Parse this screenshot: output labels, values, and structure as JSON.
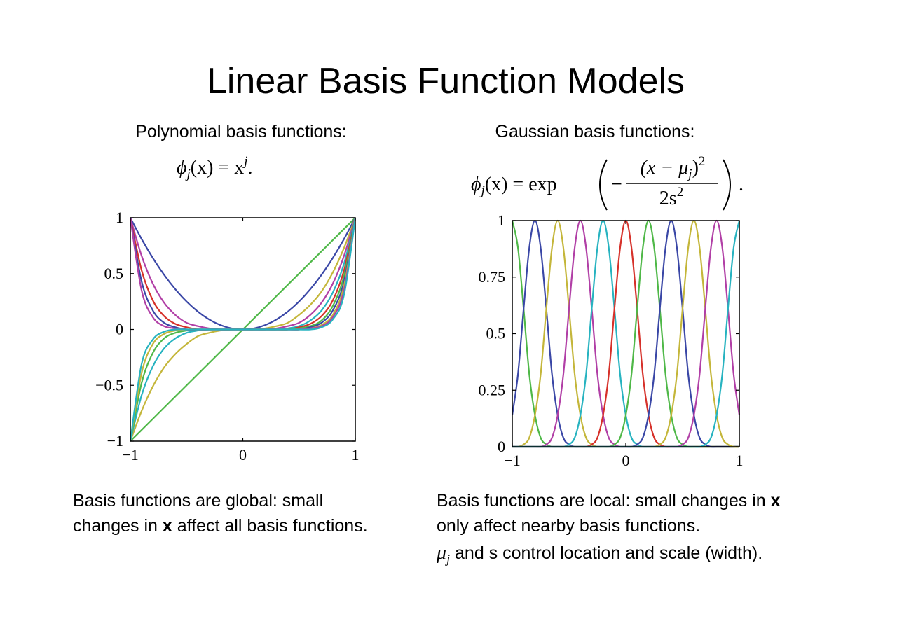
{
  "title": "Linear Basis Function Models",
  "left": {
    "heading": "Polynomial basis functions:",
    "formula": {
      "phi": "ϕ",
      "sub": "j",
      "rest": "(x) = x",
      "sup": "j",
      "end": "."
    },
    "caption": [
      [
        "Basis functions are global: small"
      ],
      [
        "changes in ",
        "x",
        " affect all basis functions."
      ]
    ]
  },
  "right": {
    "heading": "Gaussian basis functions:",
    "formula": {
      "phi": "ϕ",
      "sub": "j",
      "rest": "(x) = exp",
      "minus": "−",
      "num": "(x − μ",
      "num_sub": "j",
      "num_close": ")",
      "num_sup": "2",
      "den": "2s",
      "den_sup": "2",
      "end": "."
    },
    "caption": [
      [
        "Basis functions are local: small changes in ",
        "x"
      ],
      [
        "only affect nearby basis functions."
      ],
      [
        "μ",
        "j",
        " and s control location and scale (width)."
      ]
    ]
  },
  "chart_data": [
    {
      "type": "line",
      "x": [
        -1,
        -0.9,
        -0.8,
        -0.7,
        -0.6,
        -0.5,
        -0.4,
        -0.3,
        -0.2,
        -0.1,
        0,
        0.1,
        0.2,
        0.3,
        0.4,
        0.5,
        0.6,
        0.7,
        0.8,
        0.9,
        1
      ],
      "xlim": [
        -1,
        1
      ],
      "ylim": [
        -1,
        1
      ],
      "xticks": [
        {
          "value": -1,
          "label": "−1"
        },
        0,
        1
      ],
      "yticks": [
        {
          "value": -1,
          "label": "−1"
        },
        {
          "value": -0.5,
          "label": "−0.5"
        },
        0,
        0.5,
        1
      ],
      "series": [
        {
          "color": "#4fb848",
          "values": [
            -1,
            -0.9,
            -0.8,
            -0.7,
            -0.6,
            -0.5,
            -0.4,
            -0.3,
            -0.2,
            -0.1,
            0,
            0.1,
            0.2,
            0.3,
            0.4,
            0.5,
            0.6,
            0.7,
            0.8,
            0.9,
            1
          ]
        },
        {
          "color": "#3a47a6",
          "values": [
            1,
            0.81,
            0.64,
            0.49,
            0.36,
            0.25,
            0.16,
            0.09,
            0.04,
            0.01,
            0,
            0.01,
            0.04,
            0.09,
            0.16,
            0.25,
            0.36,
            0.49,
            0.64,
            0.81,
            1
          ]
        },
        {
          "color": "#c4b63a",
          "values": [
            -1,
            -0.73,
            -0.51,
            -0.34,
            -0.22,
            -0.13,
            -0.06,
            -0.03,
            -0.01,
            0,
            0,
            0,
            0.01,
            0.03,
            0.06,
            0.13,
            0.22,
            0.34,
            0.51,
            0.73,
            1
          ]
        },
        {
          "color": "#b13fa6",
          "values": [
            1,
            0.66,
            0.41,
            0.24,
            0.13,
            0.06,
            0.03,
            0.01,
            0,
            0,
            0,
            0,
            0,
            0.01,
            0.03,
            0.06,
            0.13,
            0.24,
            0.41,
            0.66,
            1
          ]
        },
        {
          "color": "#27b3c0",
          "values": [
            -1,
            -0.59,
            -0.33,
            -0.17,
            -0.08,
            -0.03,
            -0.01,
            0,
            0,
            0,
            0,
            0,
            0,
            0,
            0.01,
            0.03,
            0.08,
            0.17,
            0.33,
            0.59,
            1
          ]
        },
        {
          "color": "#d6312a",
          "values": [
            1,
            0.53,
            0.26,
            0.12,
            0.05,
            0.02,
            0,
            0,
            0,
            0,
            0,
            0,
            0,
            0,
            0,
            0.02,
            0.05,
            0.12,
            0.26,
            0.53,
            1
          ]
        },
        {
          "color": "#4fb848",
          "values": [
            -1,
            -0.48,
            -0.21,
            -0.08,
            -0.03,
            -0.01,
            0,
            0,
            0,
            0,
            0,
            0,
            0,
            0,
            0,
            0.01,
            0.03,
            0.08,
            0.21,
            0.48,
            1
          ]
        },
        {
          "color": "#3a47a6",
          "values": [
            1,
            0.43,
            0.17,
            0.06,
            0.02,
            0,
            0,
            0,
            0,
            0,
            0,
            0,
            0,
            0,
            0,
            0,
            0.02,
            0.06,
            0.17,
            0.43,
            1
          ]
        },
        {
          "color": "#c4b63a",
          "values": [
            -1,
            -0.39,
            -0.13,
            -0.04,
            -0.01,
            0,
            0,
            0,
            0,
            0,
            0,
            0,
            0,
            0,
            0,
            0,
            0.01,
            0.04,
            0.13,
            0.39,
            1
          ]
        },
        {
          "color": "#b13fa6",
          "values": [
            1,
            0.35,
            0.11,
            0.03,
            0.01,
            0,
            0,
            0,
            0,
            0,
            0,
            0,
            0,
            0,
            0,
            0,
            0.01,
            0.03,
            0.11,
            0.35,
            1
          ]
        },
        {
          "color": "#27b3c0",
          "values": [
            -1,
            -0.31,
            -0.09,
            -0.02,
            0,
            0,
            0,
            0,
            0,
            0,
            0,
            0,
            0,
            0,
            0,
            0,
            0,
            0.02,
            0.09,
            0.31,
            1
          ]
        }
      ]
    },
    {
      "type": "line",
      "x": [
        -1,
        -0.95,
        -0.9,
        -0.85,
        -0.8,
        -0.75,
        -0.7,
        -0.65,
        -0.6,
        -0.55,
        -0.5,
        -0.45,
        -0.4,
        -0.35,
        -0.3,
        -0.25,
        -0.2,
        -0.15,
        -0.1,
        -0.05,
        0,
        0.05,
        0.1,
        0.15,
        0.2,
        0.25,
        0.3,
        0.35,
        0.4,
        0.45,
        0.5,
        0.55,
        0.6,
        0.65,
        0.7,
        0.75,
        0.8,
        0.85,
        0.9,
        0.95,
        1
      ],
      "xlim": [
        -1,
        1
      ],
      "ylim": [
        0,
        1
      ],
      "xticks": [
        {
          "value": -1,
          "label": "−1"
        },
        0,
        1
      ],
      "yticks": [
        0,
        0.25,
        0.5,
        0.75,
        1
      ],
      "series": [
        {
          "color": "#4fb848",
          "values": [
            1,
            0.88,
            0.61,
            0.32,
            0.14,
            0.04,
            0.01,
            0,
            0,
            0,
            0,
            0,
            0,
            0,
            0,
            0,
            0,
            0,
            0,
            0,
            0,
            0,
            0,
            0,
            0,
            0,
            0,
            0,
            0,
            0,
            0,
            0,
            0,
            0,
            0,
            0,
            0,
            0,
            0,
            0,
            0
          ]
        },
        {
          "color": "#3a47a6",
          "values": [
            0.14,
            0.32,
            0.61,
            0.88,
            1,
            0.88,
            0.61,
            0.32,
            0.14,
            0.04,
            0.01,
            0,
            0,
            0,
            0,
            0,
            0,
            0,
            0,
            0,
            0,
            0,
            0,
            0,
            0,
            0,
            0,
            0,
            0,
            0,
            0,
            0,
            0,
            0,
            0,
            0,
            0,
            0,
            0,
            0,
            0
          ]
        },
        {
          "color": "#c4b63a",
          "values": [
            0,
            0,
            0.01,
            0.04,
            0.14,
            0.32,
            0.61,
            0.88,
            1,
            0.88,
            0.61,
            0.32,
            0.14,
            0.04,
            0.01,
            0,
            0,
            0,
            0,
            0,
            0,
            0,
            0,
            0,
            0,
            0,
            0,
            0,
            0,
            0,
            0,
            0,
            0,
            0,
            0,
            0,
            0,
            0,
            0,
            0,
            0
          ]
        },
        {
          "color": "#b13fa6",
          "values": [
            0,
            0,
            0,
            0,
            0,
            0,
            0.01,
            0.04,
            0.14,
            0.32,
            0.61,
            0.88,
            1,
            0.88,
            0.61,
            0.32,
            0.14,
            0.04,
            0.01,
            0,
            0,
            0,
            0,
            0,
            0,
            0,
            0,
            0,
            0,
            0,
            0,
            0,
            0,
            0,
            0,
            0,
            0,
            0,
            0,
            0,
            0
          ]
        },
        {
          "color": "#27b3c0",
          "values": [
            0,
            0,
            0,
            0,
            0,
            0,
            0,
            0,
            0,
            0,
            0.01,
            0.04,
            0.14,
            0.32,
            0.61,
            0.88,
            1,
            0.88,
            0.61,
            0.32,
            0.14,
            0.04,
            0.01,
            0,
            0,
            0,
            0,
            0,
            0,
            0,
            0,
            0,
            0,
            0,
            0,
            0,
            0,
            0,
            0,
            0,
            0
          ]
        },
        {
          "color": "#d6312a",
          "values": [
            0,
            0,
            0,
            0,
            0,
            0,
            0,
            0,
            0,
            0,
            0,
            0,
            0,
            0,
            0.01,
            0.04,
            0.14,
            0.32,
            0.61,
            0.88,
            1,
            0.88,
            0.61,
            0.32,
            0.14,
            0.04,
            0.01,
            0,
            0,
            0,
            0,
            0,
            0,
            0,
            0,
            0,
            0,
            0,
            0,
            0,
            0
          ]
        },
        {
          "color": "#4fb848",
          "values": [
            0,
            0,
            0,
            0,
            0,
            0,
            0,
            0,
            0,
            0,
            0,
            0,
            0,
            0,
            0,
            0,
            0,
            0,
            0.01,
            0.04,
            0.14,
            0.32,
            0.61,
            0.88,
            1,
            0.88,
            0.61,
            0.32,
            0.14,
            0.04,
            0.01,
            0,
            0,
            0,
            0,
            0,
            0,
            0,
            0,
            0,
            0
          ]
        },
        {
          "color": "#3a47a6",
          "values": [
            0,
            0,
            0,
            0,
            0,
            0,
            0,
            0,
            0,
            0,
            0,
            0,
            0,
            0,
            0,
            0,
            0,
            0,
            0,
            0,
            0,
            0,
            0.01,
            0.04,
            0.14,
            0.32,
            0.61,
            0.88,
            1,
            0.88,
            0.61,
            0.32,
            0.14,
            0.04,
            0.01,
            0,
            0,
            0,
            0,
            0,
            0
          ]
        },
        {
          "color": "#c4b63a",
          "values": [
            0,
            0,
            0,
            0,
            0,
            0,
            0,
            0,
            0,
            0,
            0,
            0,
            0,
            0,
            0,
            0,
            0,
            0,
            0,
            0,
            0,
            0,
            0,
            0,
            0,
            0,
            0.01,
            0.04,
            0.14,
            0.32,
            0.61,
            0.88,
            1,
            0.88,
            0.61,
            0.32,
            0.14,
            0.04,
            0.01,
            0,
            0
          ]
        },
        {
          "color": "#b13fa6",
          "values": [
            0,
            0,
            0,
            0,
            0,
            0,
            0,
            0,
            0,
            0,
            0,
            0,
            0,
            0,
            0,
            0,
            0,
            0,
            0,
            0,
            0,
            0,
            0,
            0,
            0,
            0,
            0,
            0,
            0,
            0,
            0.01,
            0.04,
            0.14,
            0.32,
            0.61,
            0.88,
            1,
            0.88,
            0.61,
            0.32,
            0.14
          ]
        },
        {
          "color": "#27b3c0",
          "values": [
            0,
            0,
            0,
            0,
            0,
            0,
            0,
            0,
            0,
            0,
            0,
            0,
            0,
            0,
            0,
            0,
            0,
            0,
            0,
            0,
            0,
            0,
            0,
            0,
            0,
            0,
            0,
            0,
            0,
            0,
            0,
            0,
            0,
            0,
            0.01,
            0.04,
            0.14,
            0.32,
            0.61,
            0.88,
            1
          ]
        }
      ]
    }
  ]
}
